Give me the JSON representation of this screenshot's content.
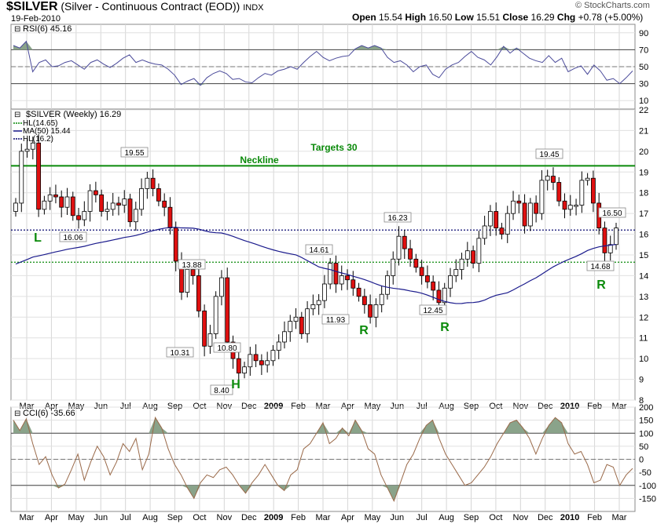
{
  "header": {
    "symbol": "$SILVER",
    "description": "(Silver - Continuous Contract (EOD))",
    "exchange": "INDX",
    "date": "19-Feb-2010",
    "open_label": "Open",
    "open": "15.54",
    "high_label": "High",
    "high": "16.50",
    "low_label": "Low",
    "low": "15.51",
    "close_label": "Close",
    "close": "16.29",
    "chg_label": "Chg",
    "chg": "+0.78 (+5.00%)",
    "watermark": "© StockCharts.com"
  },
  "colors": {
    "up": "#ffffff",
    "down": "#e01010",
    "outline": "#000000",
    "ma": "#1a1a8c",
    "hl_green": "#0a8a0a",
    "hl_navy": "#0a0a70",
    "neckline": "#0a8a0a",
    "annot": "#0a8a0a",
    "osc_line": "#4a4a9a",
    "cci_line": "#9a6a4a",
    "fill": "#8aa38a"
  },
  "x_ticks": [
    "Mar",
    "Apr",
    "May",
    "Jun",
    "Jul",
    "Aug",
    "Sep",
    "Oct",
    "Nov",
    "Dec",
    "2009",
    "Feb",
    "Mar",
    "Apr",
    "May",
    "Jun",
    "Jul",
    "Aug",
    "Sep",
    "Oct",
    "Nov",
    "Dec",
    "2010",
    "Feb",
    "Mar"
  ],
  "chart_data": [
    {
      "type": "line",
      "title": "RSI(6) 45.16",
      "ylim": [
        0,
        100
      ],
      "y_ticks": [
        10,
        30,
        50,
        70,
        90
      ],
      "reference_lines": [
        30,
        70
      ],
      "midline": 50,
      "values": [
        75,
        72,
        80,
        44,
        55,
        58,
        50,
        51,
        55,
        57,
        52,
        47,
        55,
        58,
        53,
        49,
        54,
        60,
        64,
        55,
        58,
        55,
        53,
        52,
        47,
        40,
        29,
        33,
        36,
        28,
        37,
        42,
        45,
        42,
        35,
        36,
        32,
        31,
        37,
        42,
        40,
        45,
        47,
        50,
        47,
        55,
        62,
        68,
        61,
        57,
        60,
        62,
        63,
        71,
        75,
        72,
        75,
        72,
        61,
        55,
        57,
        52,
        44,
        50,
        52,
        41,
        37,
        47,
        52,
        55,
        62,
        68,
        61,
        58,
        52,
        62,
        74,
        66,
        72,
        66,
        60,
        57,
        55,
        63,
        55,
        60,
        44,
        48,
        51,
        41,
        52,
        45,
        34,
        36,
        30,
        37,
        45
      ]
    },
    {
      "type": "candlestick",
      "title": "$SILVER (Weekly) 16.29",
      "legend": [
        "HL(14.65)",
        "MA(50) 15.44",
        "HL(16.2)"
      ],
      "ylim": [
        8,
        22
      ],
      "y_ticks": [
        8,
        9,
        10,
        11,
        12,
        13,
        14,
        15,
        16,
        17,
        18,
        19,
        20,
        21,
        22
      ],
      "horizontal_lines": {
        "neckline": 19.3,
        "hl_upper": 16.2,
        "hl_lower": 14.65
      },
      "close": [
        17.5,
        20.0,
        20.1,
        20.4,
        17.2,
        17.6,
        17.9,
        17.8,
        17.3,
        17.8,
        16.9,
        16.7,
        17.1,
        18.1,
        17.9,
        17.1,
        17.2,
        17.5,
        17.4,
        17.7,
        16.6,
        17.2,
        18.2,
        18.7,
        18.2,
        17.6,
        17.3,
        16.3,
        14.7,
        13.2,
        14.3,
        14.0,
        12.3,
        10.6,
        11.2,
        13.0,
        13.9,
        10.8,
        10.0,
        9.3,
        9.6,
        10.2,
        9.9,
        9.7,
        9.9,
        10.4,
        10.8,
        11.3,
        11.8,
        12.0,
        11.2,
        12.4,
        12.6,
        12.8,
        13.6,
        14.6,
        13.6,
        14.0,
        13.8,
        13.4,
        13.0,
        12.6,
        12.0,
        12.6,
        13.1,
        14.0,
        14.8,
        15.9,
        15.3,
        14.8,
        14.4,
        14.0,
        13.7,
        13.3,
        12.7,
        13.4,
        14.0,
        14.3,
        14.8,
        15.2,
        14.6,
        15.8,
        16.4,
        17.1,
        16.3,
        16.0,
        17.0,
        17.6,
        17.5,
        16.4,
        17.5,
        17.0,
        18.6,
        18.8,
        18.5,
        17.6,
        17.2,
        17.4,
        17.4,
        18.6,
        18.7,
        17.5,
        16.3,
        15.1,
        15.5,
        16.3
      ],
      "max_label": "19.45",
      "price_labels": [
        "19.55",
        "16.06",
        "13.88",
        "10.31",
        "10.80",
        "8.40",
        "14.61",
        "11.93",
        "16.23",
        "12.45",
        "19.45",
        "16.50",
        "14.68"
      ],
      "annotations": {
        "neckline": "Neckline",
        "targets": "Targets 30",
        "left_shoulder": "L",
        "head": "H",
        "right_shoulder": "R"
      }
    },
    {
      "type": "line",
      "title": "CCI(6) -35.66",
      "ylim": [
        -200,
        200
      ],
      "y_ticks": [
        -150,
        -100,
        -50,
        0,
        50,
        100,
        150,
        200
      ],
      "y_tick_labels": [
        "-150",
        "-100",
        "-50",
        "0",
        "50",
        "100",
        "150",
        "200"
      ],
      "reference_lines": [
        -100,
        100
      ],
      "midline": 0,
      "values": [
        150,
        110,
        155,
        60,
        -20,
        10,
        -60,
        -110,
        -95,
        -40,
        20,
        -80,
        -10,
        50,
        10,
        -60,
        -10,
        60,
        30,
        80,
        -40,
        20,
        160,
        120,
        40,
        -20,
        -60,
        -110,
        -150,
        -90,
        -60,
        -70,
        -40,
        -30,
        -60,
        -100,
        -130,
        -90,
        -60,
        -20,
        -60,
        -100,
        -120,
        -60,
        -40,
        40,
        60,
        100,
        140,
        60,
        80,
        120,
        90,
        150,
        110,
        40,
        20,
        -60,
        -110,
        -160,
        -90,
        -20,
        20,
        80,
        130,
        150,
        80,
        20,
        -20,
        -60,
        -100,
        -90,
        -60,
        -30,
        10,
        60,
        100,
        140,
        150,
        120,
        80,
        20,
        80,
        130,
        160,
        140,
        60,
        20,
        30,
        -20,
        -90,
        -80,
        -20,
        -30,
        -100,
        -60,
        -35
      ]
    }
  ]
}
